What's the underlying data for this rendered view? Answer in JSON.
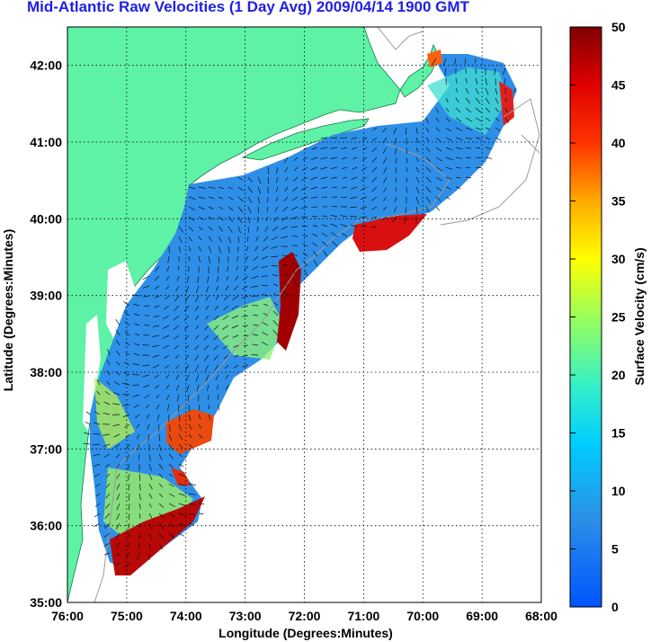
{
  "title": "Mid-Atlantic Raw Velocities (1 Day Avg) 2009/04/14 1900 GMT",
  "x_axis": {
    "label": "Longitude (Degrees:Minutes)",
    "ticks": [
      "76:00",
      "75:00",
      "74:00",
      "73:00",
      "72:00",
      "71:00",
      "70:00",
      "69:00",
      "68:00"
    ]
  },
  "y_axis": {
    "label": "Latitude (Degrees:Minutes)",
    "ticks": [
      "42:00",
      "41:00",
      "40:00",
      "39:00",
      "38:00",
      "37:00",
      "36:00",
      "35:00"
    ]
  },
  "colorbar": {
    "label": "Surface Velocity (cm/s)",
    "ticks": [
      "50",
      "45",
      "40",
      "35",
      "30",
      "25",
      "20",
      "15",
      "10",
      "5",
      "0"
    ],
    "min": 0,
    "max": 50
  },
  "colors": {
    "title": "#1f1fe6",
    "land": "#5ef2a6",
    "low_velocity": "#2e8fe8",
    "high_velocity": "#a00000"
  },
  "map_extent": {
    "lon": [
      -76,
      -68
    ],
    "lat": [
      35,
      42.5
    ]
  }
}
